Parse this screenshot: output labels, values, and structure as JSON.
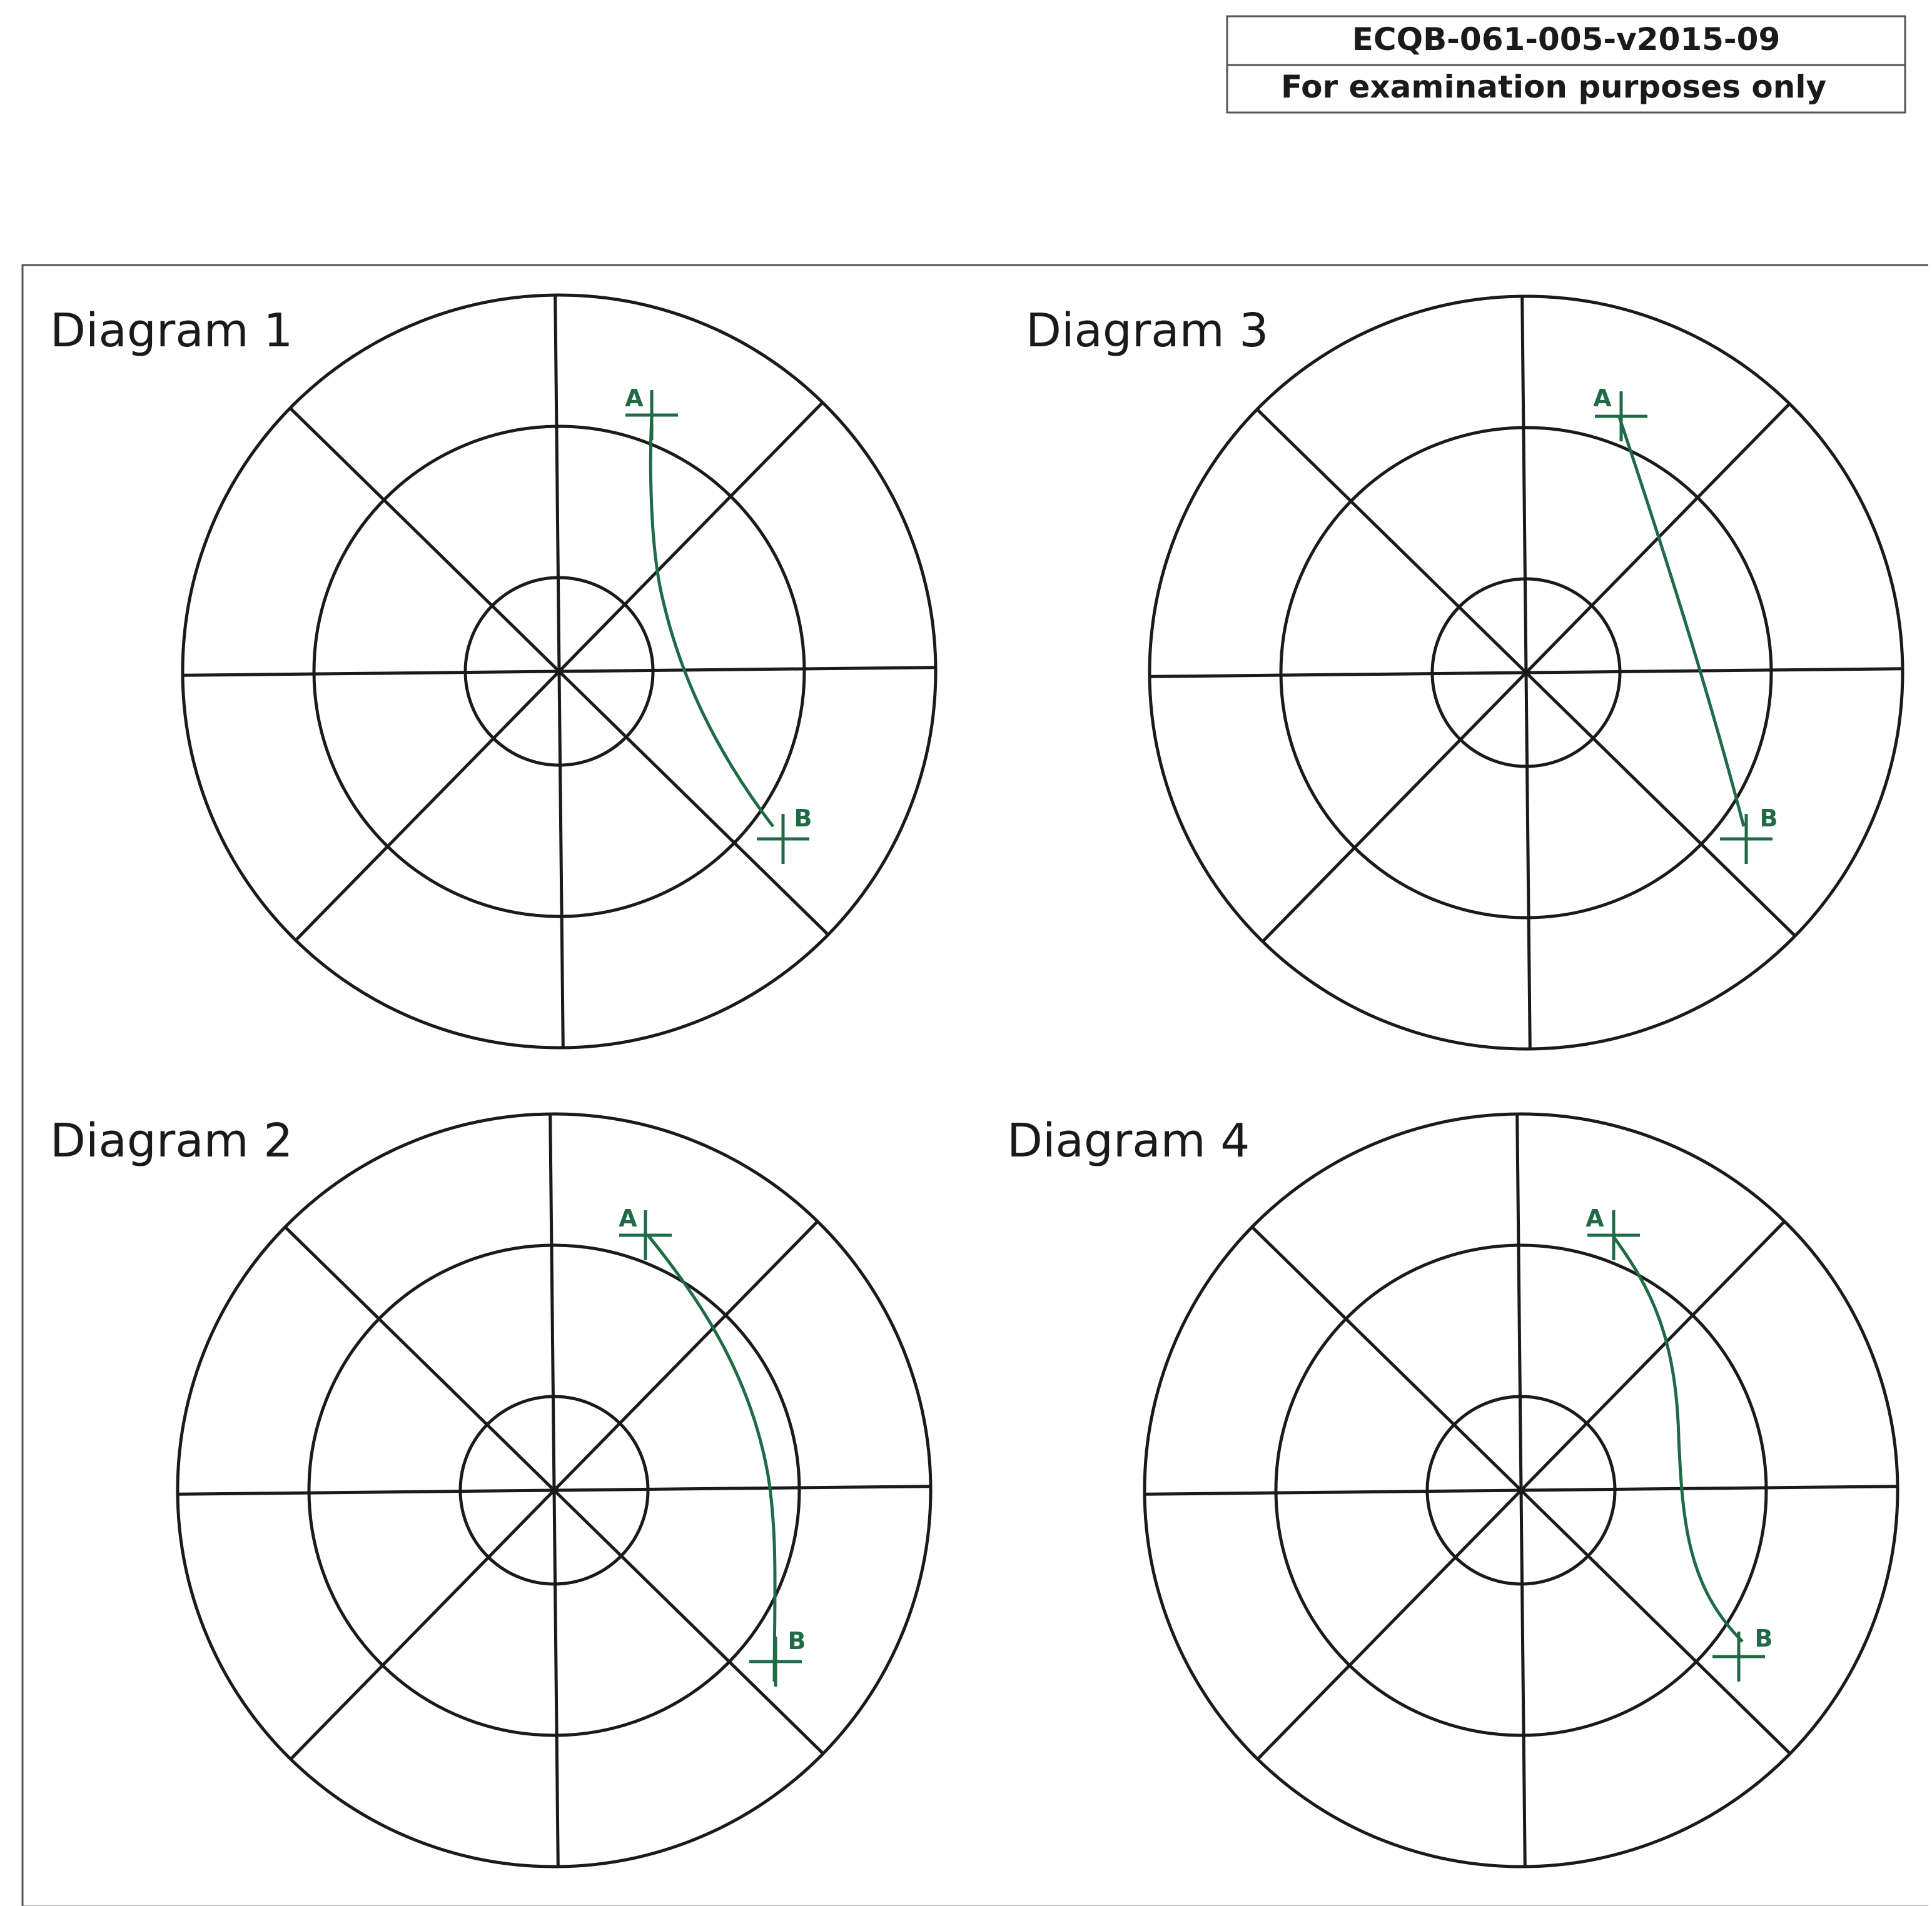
{
  "header": {
    "code": "ECQB-061-005-v2015-09",
    "note": "For examination purposes only"
  },
  "colors": {
    "ink": "#1a1a1a",
    "route": "#1f6b45",
    "frame": "#555555"
  },
  "diagrams": [
    {
      "id": "d1",
      "title": "Diagram 1",
      "point_a": "A",
      "point_b": "B"
    },
    {
      "id": "d2",
      "title": "Diagram 2",
      "point_a": "A",
      "point_b": "B"
    },
    {
      "id": "d3",
      "title": "Diagram 3",
      "point_a": "A",
      "point_b": "B"
    },
    {
      "id": "d4",
      "title": "Diagram 4",
      "point_a": "A",
      "point_b": "B"
    }
  ]
}
